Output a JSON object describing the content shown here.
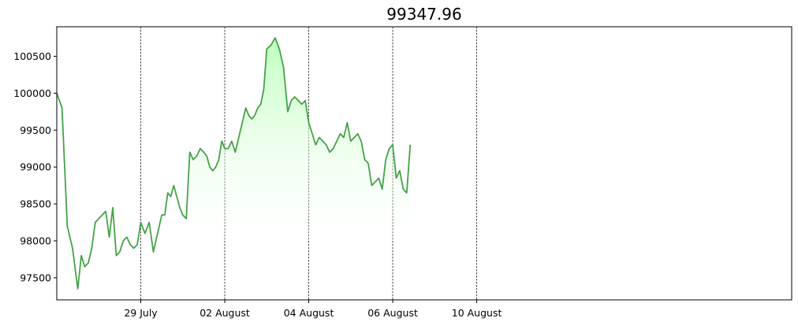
{
  "chart_data": {
    "type": "area",
    "title": "99347.96",
    "xlabel": "",
    "ylabel": "",
    "x_axis": {
      "kind": "date",
      "range": [
        "2025-07-25",
        "2025-08-29"
      ],
      "tick_labels": [
        "29 July",
        "02 August",
        "04 August",
        "06 August",
        "10 August"
      ]
    },
    "y_axis": {
      "range": [
        97200,
        100900
      ],
      "tick_values": [
        97500,
        98000,
        98500,
        99000,
        99500,
        100000,
        100500
      ],
      "tick_labels": [
        "97500",
        "98000",
        "98500",
        "99000",
        "99500",
        "100000",
        "100500"
      ]
    },
    "vertical_guides": [
      "29 July",
      "02 August",
      "04 August",
      "06 August",
      "10 August"
    ],
    "grid": false,
    "legend": "none",
    "line_color": "#45a348",
    "fill_color_top": "#b3ffb3",
    "fill_color_bottom": "#ffffff",
    "guide_color": "#000000",
    "series": [
      {
        "x": [
          "2025-07-25",
          "2025-07-25",
          "2025-07-25",
          "2025-07-25",
          "2025-07-26",
          "2025-07-26",
          "2025-07-26",
          "2025-07-26",
          "2025-07-26",
          "2025-07-26",
          "2025-07-27",
          "2025-07-27",
          "2025-07-27",
          "2025-07-27",
          "2025-07-27",
          "2025-07-27",
          "2025-07-28",
          "2025-07-28",
          "2025-07-28",
          "2025-07-28",
          "2025-07-28",
          "2025-07-28",
          "2025-07-29",
          "2025-07-29",
          "2025-07-29",
          "2025-07-29",
          "2025-07-29",
          "2025-07-30",
          "2025-07-30",
          "2025-07-30",
          "2025-07-30",
          "2025-07-30",
          "2025-07-30",
          "2025-07-30",
          "2025-07-31",
          "2025-07-31",
          "2025-07-31",
          "2025-07-31",
          "2025-07-31",
          "2025-07-31",
          "2025-08-01",
          "2025-08-01",
          "2025-08-01",
          "2025-08-01",
          "2025-08-01",
          "2025-08-01",
          "2025-08-01",
          "2025-08-02",
          "2025-08-02",
          "2025-08-02",
          "2025-08-02",
          "2025-08-02",
          "2025-08-02",
          "2025-08-03",
          "2025-08-03",
          "2025-08-03",
          "2025-08-03",
          "2025-08-03",
          "2025-08-03",
          "2025-08-03",
          "2025-08-04",
          "2025-08-04",
          "2025-08-04",
          "2025-08-04",
          "2025-08-04",
          "2025-08-05",
          "2025-08-05",
          "2025-08-05",
          "2025-08-05",
          "2025-08-05",
          "2025-08-05",
          "2025-08-06",
          "2025-08-06",
          "2025-08-06",
          "2025-08-06",
          "2025-08-06",
          "2025-08-06",
          "2025-08-07",
          "2025-08-07",
          "2025-08-07",
          "2025-08-07",
          "2025-08-07",
          "2025-08-07",
          "2025-08-08",
          "2025-08-08",
          "2025-08-08",
          "2025-08-08",
          "2025-08-08",
          "2025-08-08",
          "2025-08-09",
          "2025-08-09",
          "2025-08-09",
          "2025-08-09",
          "2025-08-09",
          "2025-08-09",
          "2025-08-10",
          "2025-08-10",
          "2025-08-10",
          "2025-08-10",
          "2025-08-10",
          "2025-08-10"
        ],
        "y": [
          100000,
          99800,
          98200,
          97900,
          97350,
          97800,
          97650,
          97700,
          97900,
          98250,
          98300,
          98350,
          98400,
          98050,
          98450,
          97800,
          97850,
          98000,
          98050,
          97950,
          97900,
          97950,
          98250,
          98100,
          98250,
          97850,
          98100,
          98350,
          98350,
          98650,
          98600,
          98750,
          98600,
          98450,
          98350,
          98300,
          99200,
          99100,
          99150,
          99250,
          99200,
          99150,
          99000,
          98950,
          99000,
          99100,
          99350,
          99250,
          99250,
          99350,
          99200,
          99400,
          99600,
          99800,
          99700,
          99650,
          99700,
          99800,
          99850,
          100050,
          100600,
          100650,
          100750,
          100600,
          100350,
          99750,
          99900,
          99950,
          99900,
          99850,
          99900,
          99600,
          99450,
          99300,
          99400,
          99350,
          99300,
          99200,
          99250,
          99350,
          99450,
          99400,
          99600,
          99350,
          99400,
          99450,
          99350,
          99100,
          99050,
          98750,
          98800,
          98850,
          98700,
          99100,
          99250,
          99300,
          98850,
          98950,
          98700,
          98650,
          99300
        ]
      }
    ]
  }
}
